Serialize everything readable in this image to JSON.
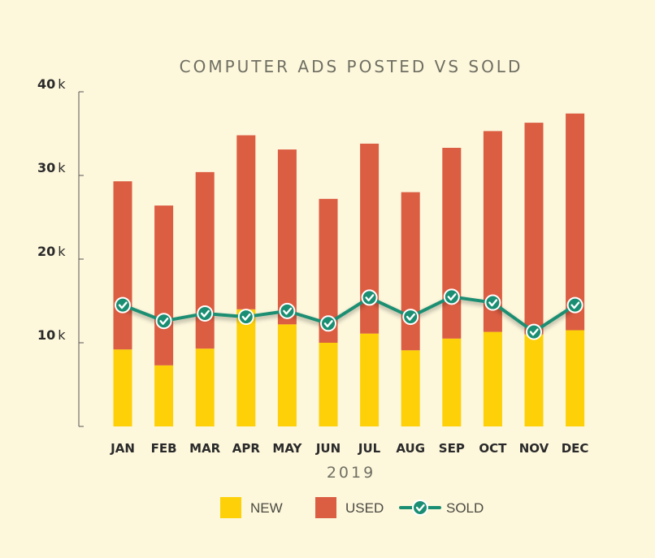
{
  "chart_data": {
    "type": "bar",
    "stacked": true,
    "title": "COMPUTER ADS POSTED VS SOLD",
    "xlabel": "2019",
    "ylabel": "",
    "ylim": [
      0,
      40000
    ],
    "yticks": [
      10000,
      20000,
      30000,
      40000
    ],
    "ytick_labels": [
      {
        "num": "10",
        "unit": "k"
      },
      {
        "num": "20",
        "unit": "k"
      },
      {
        "num": "30",
        "unit": "k"
      },
      {
        "num": "40",
        "unit": "k"
      }
    ],
    "categories": [
      "JAN",
      "FEB",
      "MAR",
      "APR",
      "MAY",
      "JUN",
      "JUL",
      "AUG",
      "SEP",
      "OCT",
      "NOV",
      "DEC"
    ],
    "series": [
      {
        "name": "NEW",
        "kind": "bar",
        "color": "#fdd007",
        "values": [
          9200,
          7300,
          9300,
          14000,
          12200,
          10000,
          11100,
          9100,
          10500,
          11300,
          11000,
          11500
        ]
      },
      {
        "name": "USED",
        "kind": "bar",
        "color": "#db5d42",
        "values": [
          20100,
          19100,
          21100,
          20800,
          20900,
          17200,
          22700,
          18900,
          22800,
          24000,
          25300,
          25900
        ]
      },
      {
        "name": "SOLD",
        "kind": "line",
        "color": "#1a8e72",
        "values": [
          14500,
          12600,
          13500,
          13100,
          13800,
          12300,
          15400,
          13100,
          15500,
          14800,
          11300,
          14500
        ]
      }
    ],
    "grid": false,
    "legend_position": "bottom"
  }
}
